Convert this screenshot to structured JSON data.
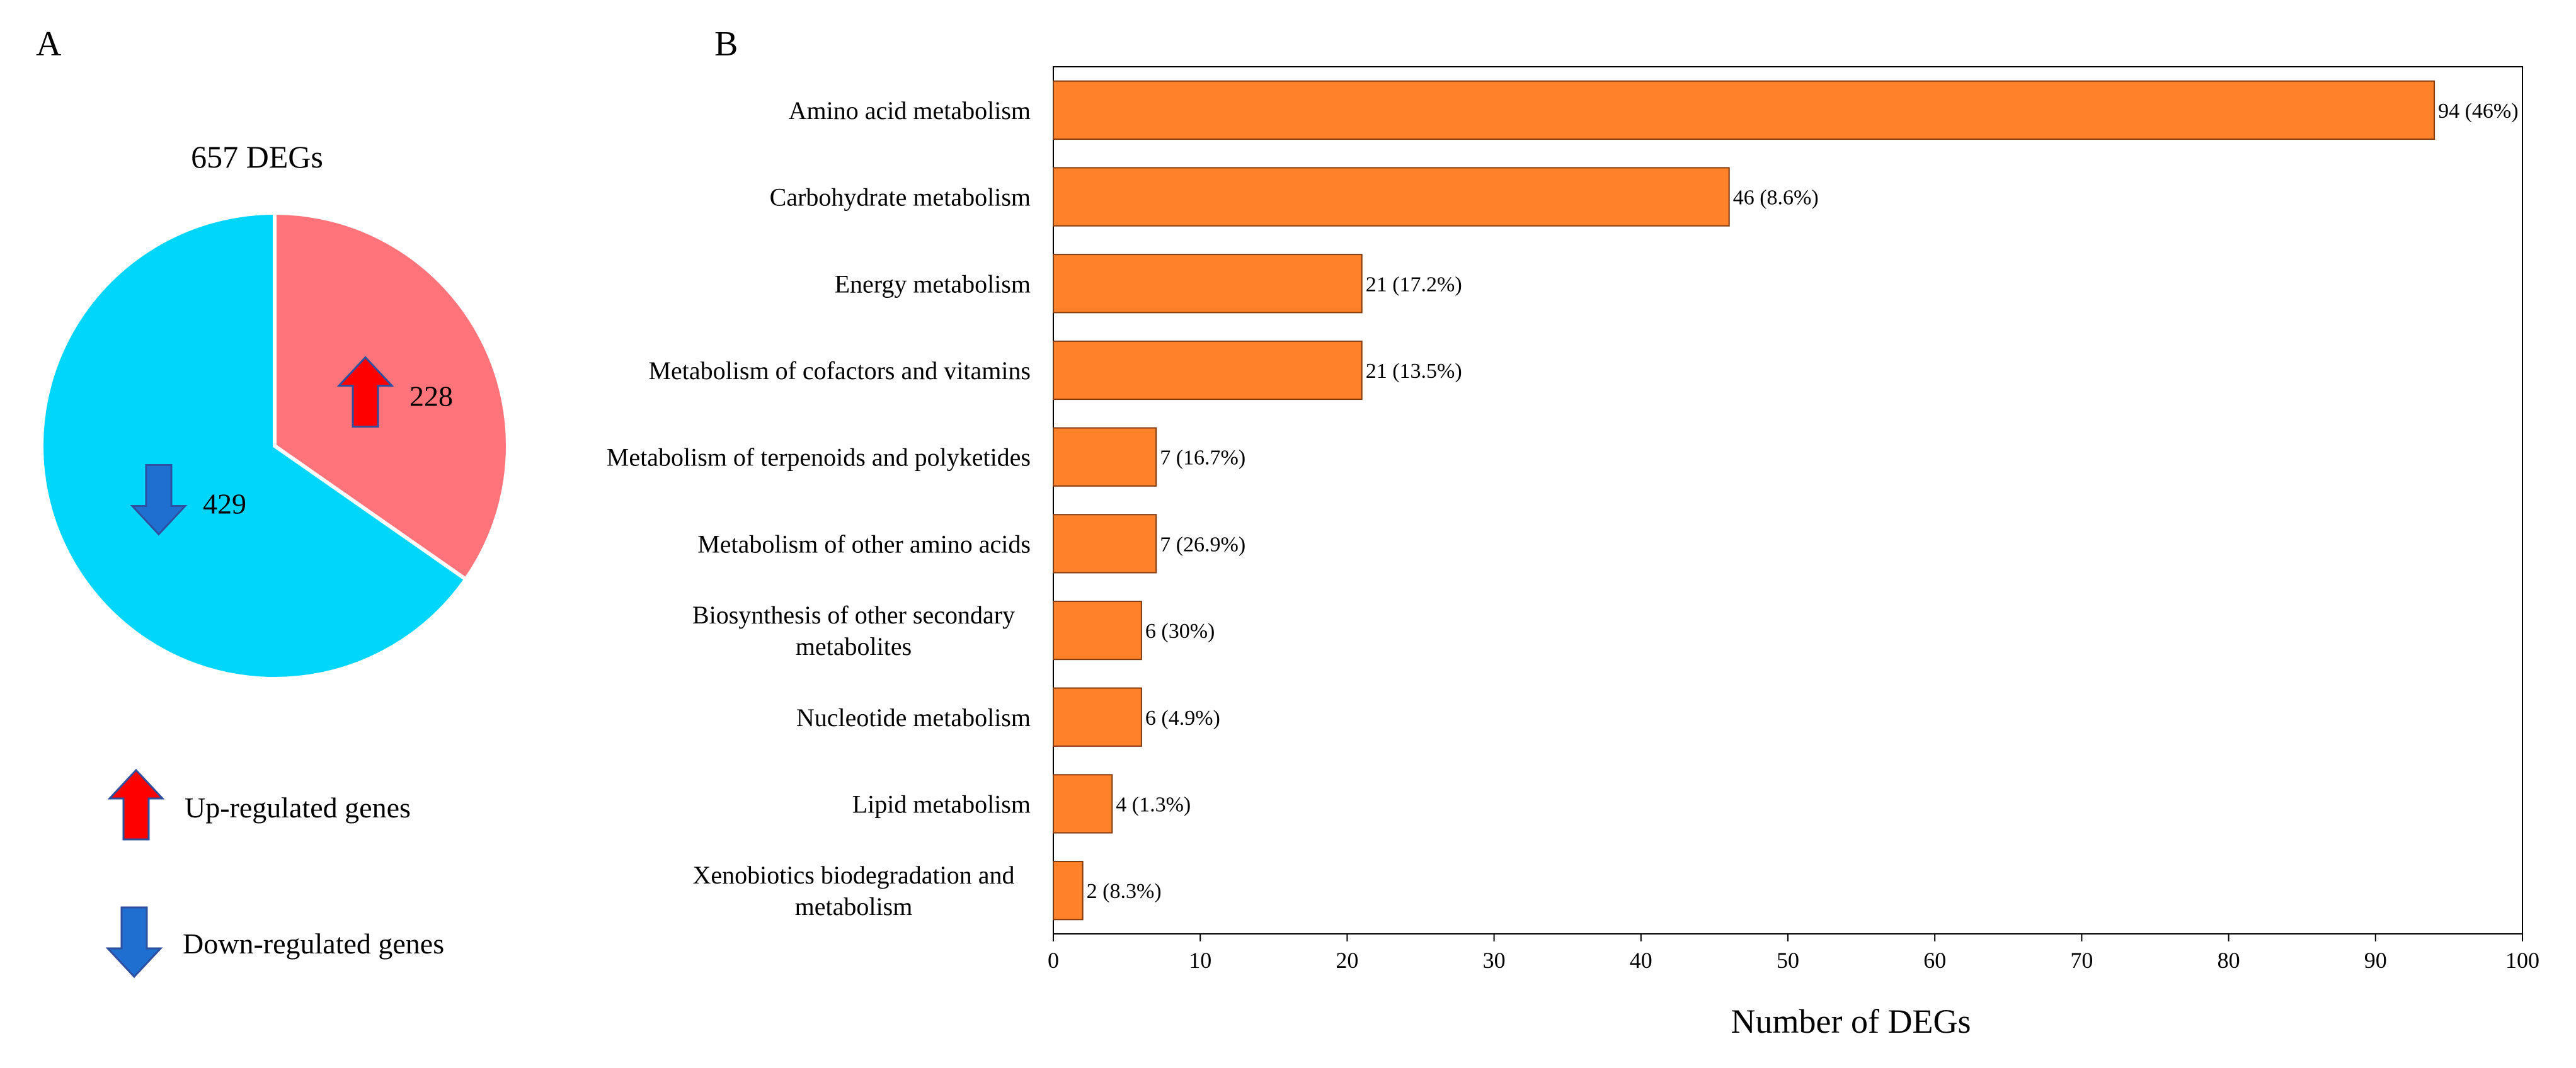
{
  "chart_data": [
    {
      "type": "pie",
      "panel_label": "A",
      "title": "657 DEGs",
      "slices": [
        {
          "label": "Up-regulated genes",
          "value": 228,
          "color": "#FF737B",
          "arrow": "up-arrow-icon"
        },
        {
          "label": "Down-regulated genes",
          "value": 429,
          "color": "#00D5FC",
          "arrow": "down-arrow-icon"
        }
      ],
      "legend": [
        {
          "label": "Up-regulated genes",
          "icon": "up-arrow-icon",
          "color": "#FF0000"
        },
        {
          "label": "Down-regulated genes",
          "icon": "down-arrow-icon",
          "color": "#1F6FD0"
        }
      ]
    },
    {
      "type": "bar",
      "orientation": "horizontal",
      "panel_label": "B",
      "categories": [
        "Amino acid metabolism",
        "Carbohydrate metabolism",
        "Energy metabolism",
        "Metabolism of cofactors and vitamins",
        "Metabolism of terpenoids and polyketides",
        "Metabolism of other amino acids",
        "Biosynthesis of other secondary metabolites",
        "Nucleotide metabolism",
        "Lipid metabolism",
        "Xenobiotics biodegradation and metabolism"
      ],
      "category_lines": [
        [
          "Amino acid metabolism"
        ],
        [
          "Carbohydrate metabolism"
        ],
        [
          "Energy metabolism"
        ],
        [
          "Metabolism of cofactors and vitamins"
        ],
        [
          "Metabolism of terpenoids and polyketides"
        ],
        [
          "Metabolism of other amino acids"
        ],
        [
          "Biosynthesis of other secondary",
          "metabolites"
        ],
        [
          "Nucleotide metabolism"
        ],
        [
          "Lipid metabolism"
        ],
        [
          "Xenobiotics biodegradation and",
          "metabolism"
        ]
      ],
      "values": [
        94,
        46,
        21,
        21,
        7,
        7,
        6,
        6,
        4,
        2
      ],
      "data_labels": [
        "94 (46%)",
        "46 (8.6%)",
        "21 (17.2%)",
        "21 (13.5%)",
        "7 (16.7%)",
        "7 (26.9%)",
        "6 (30%)",
        "6 (4.9%)",
        "4 (1.3%)",
        "2 (8.3%)"
      ],
      "xlabel": "Number of DEGs",
      "xlim": [
        0,
        100
      ],
      "xticks": [
        0,
        10,
        20,
        30,
        40,
        50,
        60,
        70,
        80,
        90,
        100
      ],
      "bar_color": "#FF8129",
      "grid": false
    }
  ]
}
